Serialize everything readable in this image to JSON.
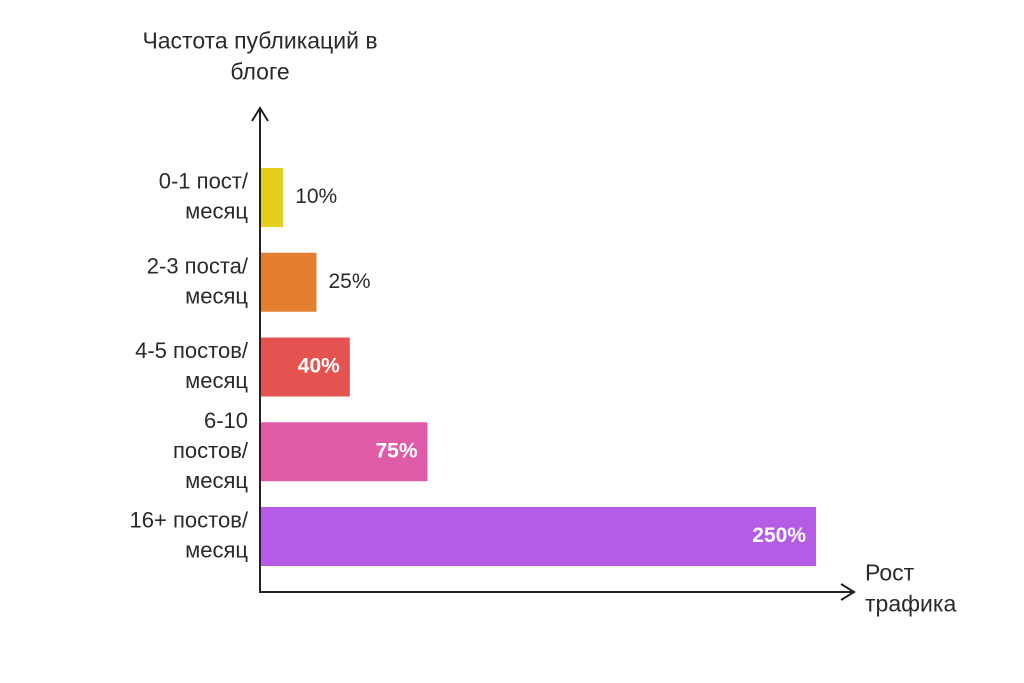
{
  "chart_data": {
    "type": "bar",
    "orientation": "horizontal",
    "ylabel": "Частота публикаций в блоге",
    "xlabel": "Рост трафика",
    "categories": [
      "0-1 пост/ месяц",
      "2-3 поста/ месяц",
      "4-5 постов/ месяц",
      "6-10 постов/ месяц",
      "16+ постов/ месяц"
    ],
    "values": [
      10,
      25,
      40,
      75,
      250
    ],
    "value_labels": [
      "10%",
      "25%",
      "40%",
      "75%",
      "250%"
    ],
    "colors": [
      "#e3cf1c",
      "#e37f2e",
      "#e45350",
      "#e05ba8",
      "#b45ce6"
    ],
    "xlim": [
      0,
      250
    ],
    "grid": false,
    "legend": "none"
  }
}
